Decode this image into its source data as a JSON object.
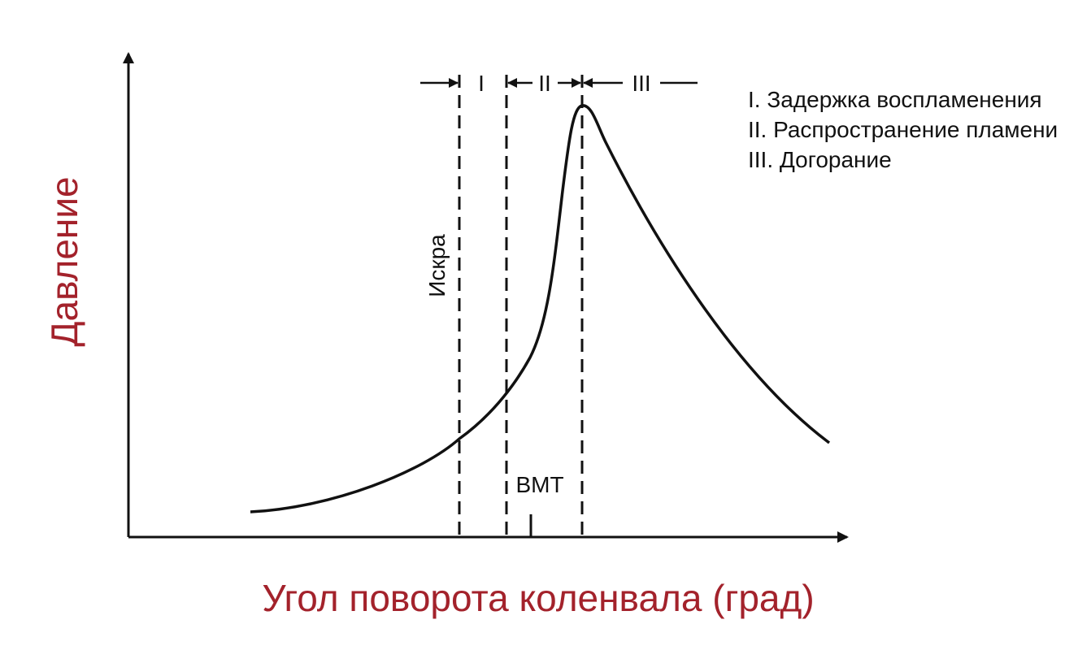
{
  "axes": {
    "y_title": "Давление",
    "x_title": "Угол поворота коленвала (град)"
  },
  "markers": {
    "spark": "Искра",
    "tdc": "ВМТ"
  },
  "phases": {
    "p1": "I",
    "p2": "II",
    "p3": "III"
  },
  "legend": {
    "item1": "I. Задержка воспламенения",
    "item2": "II. Распространение пламени",
    "item3": "III. Догорание"
  },
  "colors": {
    "axis_title": "#a3222b",
    "lines": "#111111"
  }
}
